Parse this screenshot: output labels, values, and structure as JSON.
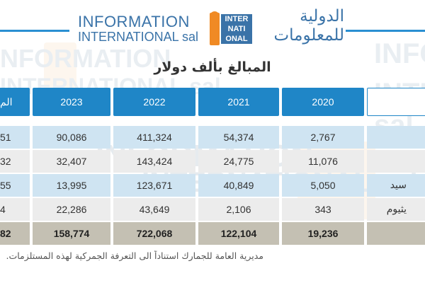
{
  "header": {
    "brand_en_line1": "INFORMATION",
    "brand_en_line2": "INTERNATIONAL sal",
    "logo_line1": "INTER",
    "logo_line2": "NATI",
    "logo_line3": "ONAL",
    "brand_ar_line1": "الدولية",
    "brand_ar_line2": "للمعلومات",
    "accent_color": "#2a8fd2",
    "logo_orange": "#f08a24"
  },
  "title": "المبالغ بألف دولار",
  "table": {
    "header_color": "#1f86c7",
    "columns": {
      "partial": "الم",
      "y2023": "2023",
      "y2022": "2022",
      "y2021": "2021",
      "y2020": "2020",
      "label": ""
    },
    "rows": [
      {
        "partial": "51",
        "y2023": "90,086",
        "y2022": "411,324",
        "y2021": "54,374",
        "y2020": "2,767",
        "label": ""
      },
      {
        "partial": "32",
        "y2023": "32,407",
        "y2022": "143,424",
        "y2021": "24,775",
        "y2020": "11,076",
        "label": ""
      },
      {
        "partial": "55",
        "y2023": "13,995",
        "y2022": "123,671",
        "y2021": "40,849",
        "y2020": "5,050",
        "label": "سيد"
      },
      {
        "partial": "4",
        "y2023": "22,286",
        "y2022": "43,649",
        "y2021": "2,106",
        "y2020": "343",
        "label": "يثيوم"
      },
      {
        "partial": "82",
        "y2023": "158,774",
        "y2022": "722,068",
        "y2021": "122,104",
        "y2020": "19,236",
        "label": ""
      }
    ]
  },
  "source": "مديرية العامة للجمارك استناداً الى التعرفة الجمركية لهذه المستلزمات."
}
